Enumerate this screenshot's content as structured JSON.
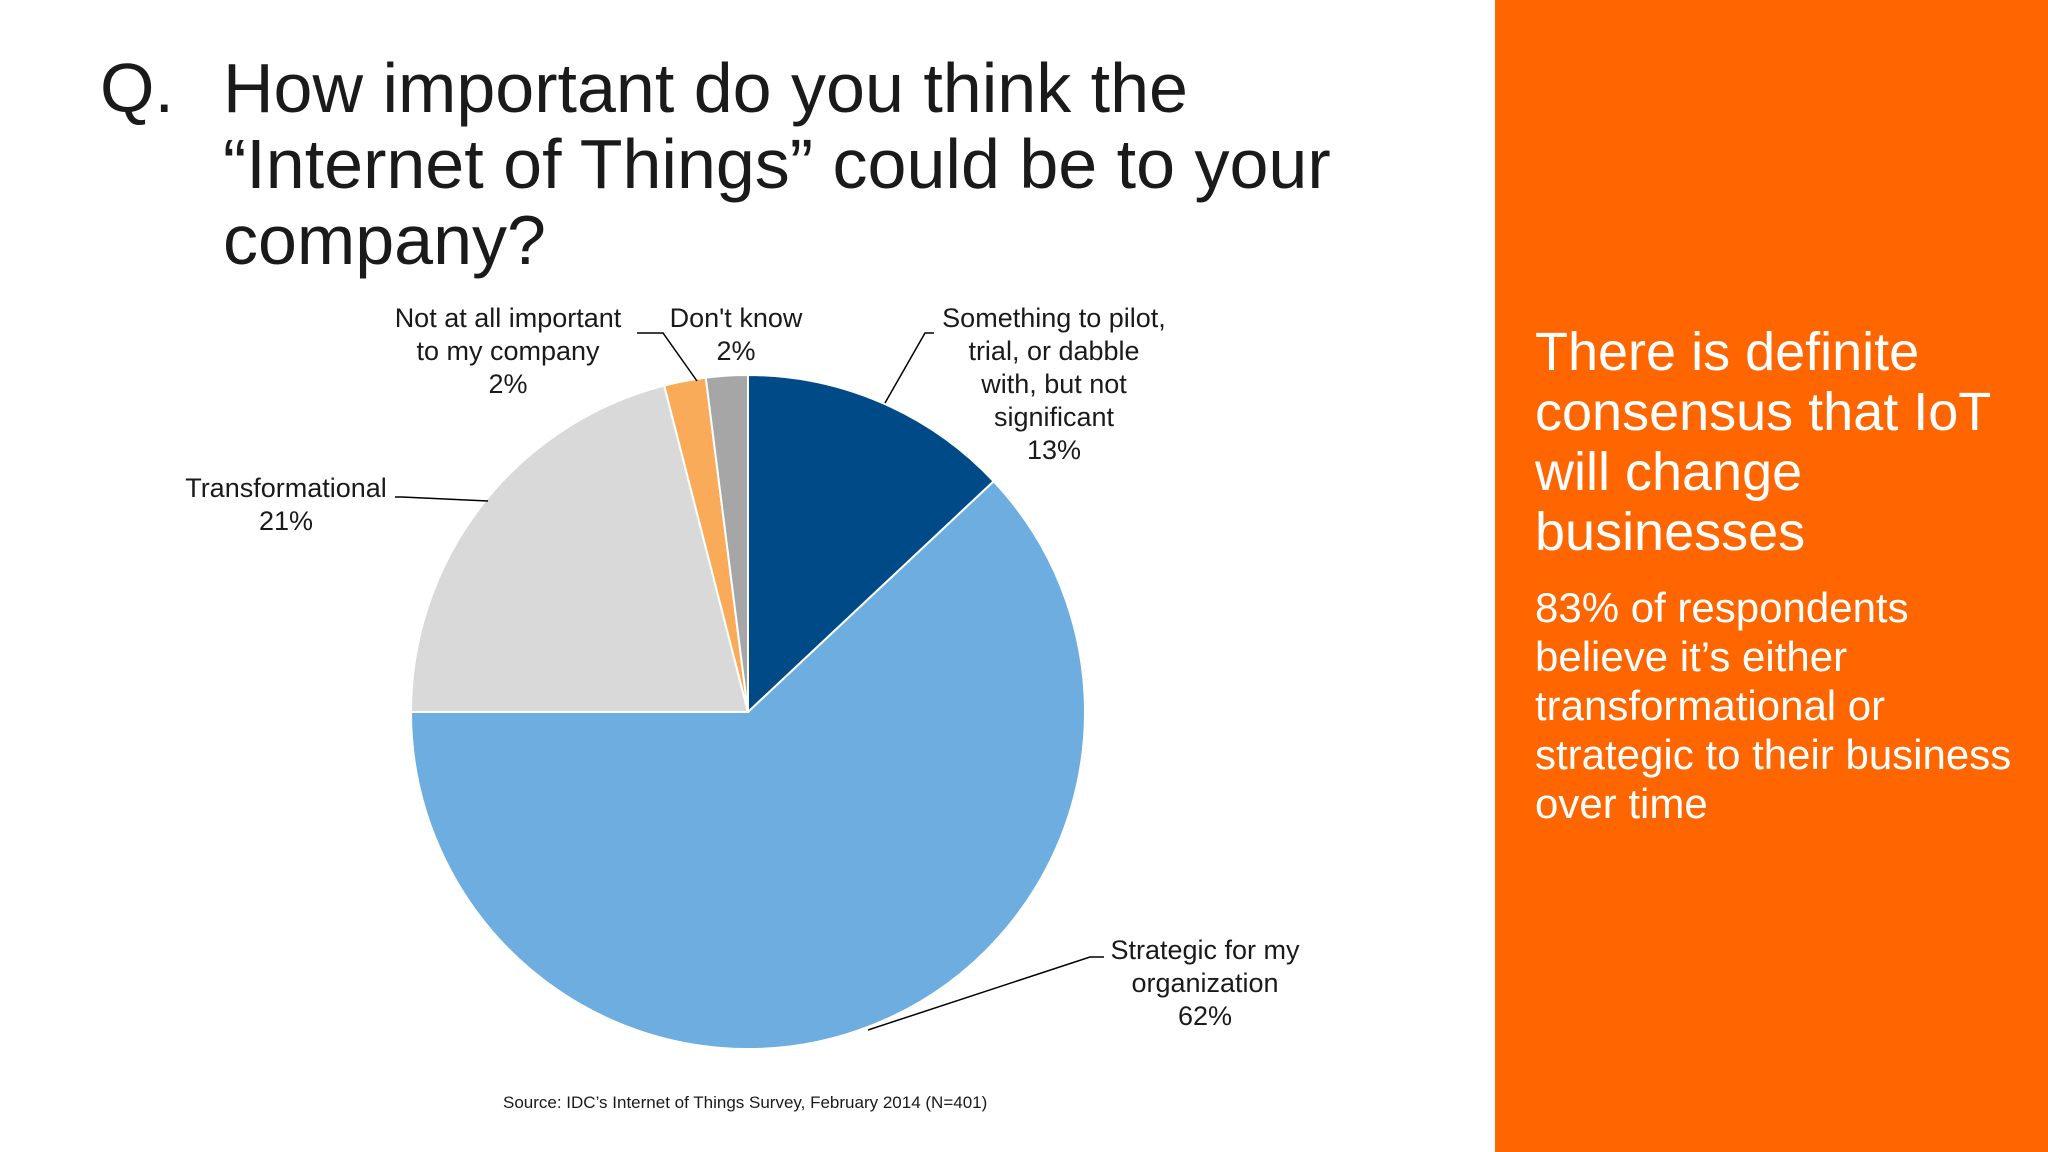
{
  "slide": {
    "q_label": "Q.",
    "question": "How important do you think the “Internet of Things” could be to your company?",
    "source": "Source: IDC’s Internet of Things Survey, February 2014 (N=401)"
  },
  "sidebar": {
    "headline": "There is definite consensus that IoT will change businesses",
    "subtext": "83% of respondents believe it’s either transformational or strategic to their business over time"
  },
  "chart_data": {
    "type": "pie",
    "start_angle_deg": 0,
    "direction": "clockwise",
    "slices": [
      {
        "label_lines": [
          "Something to pilot,",
          "trial, or dabble",
          "with, but not",
          "significant"
        ],
        "value": 13,
        "value_label": "13%",
        "color": "#004b87"
      },
      {
        "label_lines": [
          "Strategic for my",
          "organization"
        ],
        "value": 62,
        "value_label": "62%",
        "color": "#6daddf"
      },
      {
        "label_lines": [
          "Transformational"
        ],
        "value": 21,
        "value_label": "21%",
        "color": "#d9d9d9"
      },
      {
        "label_lines": [
          "Not at all important",
          "to my company"
        ],
        "value": 2,
        "value_label": "2%",
        "color": "#f9ab5a"
      },
      {
        "label_lines": [
          "Don't know"
        ],
        "value": 2,
        "value_label": "2%",
        "color": "#a6a6a6"
      }
    ]
  }
}
